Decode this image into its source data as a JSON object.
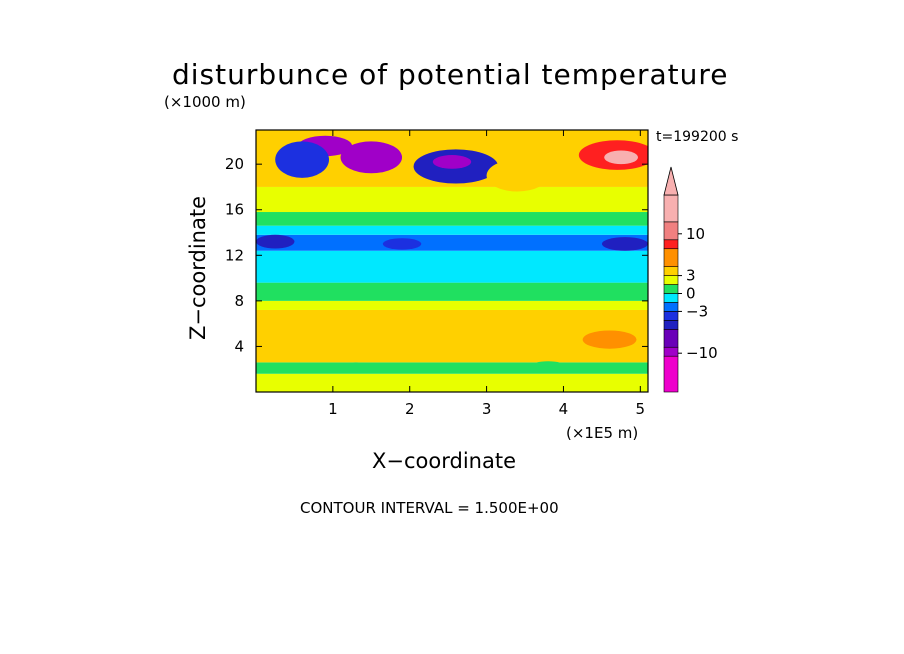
{
  "chart_data": {
    "type": "heatmap",
    "title": "disturbunce of potential temperature",
    "xlabel": "X−coordinate",
    "ylabel": "Z−coordinate",
    "x_units": "(×1E5 m)",
    "y_units": "(×1000 m)",
    "time_label": "t=199200 s",
    "footer": "CONTOUR INTERVAL = 1.500E+00",
    "xlim": [
      0,
      5.1
    ],
    "ylim": [
      0,
      23
    ],
    "x_ticks": [
      1,
      2,
      3,
      4,
      5
    ],
    "y_ticks": [
      4,
      8,
      12,
      16,
      20
    ],
    "colorbar": {
      "tick_labels": [
        "10",
        "3",
        "0",
        "−3",
        "−10"
      ],
      "tick_values": [
        10,
        3,
        0,
        -3,
        -10
      ],
      "levels": [
        {
          "lo": -16.5,
          "hi": -10.5,
          "color": "#ee00cc"
        },
        {
          "lo": -10.5,
          "hi": -9.0,
          "color": "#a000c8"
        },
        {
          "lo": -9.0,
          "hi": -6.0,
          "color": "#6a00b8"
        },
        {
          "lo": -6.0,
          "hi": -4.5,
          "color": "#2020c0"
        },
        {
          "lo": -4.5,
          "hi": -3.0,
          "color": "#1c30e0"
        },
        {
          "lo": -3.0,
          "hi": -1.5,
          "color": "#0070ff"
        },
        {
          "lo": -1.5,
          "hi": 0.0,
          "color": "#00e8ff"
        },
        {
          "lo": 0.0,
          "hi": 1.5,
          "color": "#20e060"
        },
        {
          "lo": 1.5,
          "hi": 3.0,
          "color": "#e8ff00"
        },
        {
          "lo": 3.0,
          "hi": 4.5,
          "color": "#ffd000"
        },
        {
          "lo": 4.5,
          "hi": 7.5,
          "color": "#ff9000"
        },
        {
          "lo": 7.5,
          "hi": 9.0,
          "color": "#ff2020"
        },
        {
          "lo": 9.0,
          "hi": 12.0,
          "color": "#f08080"
        },
        {
          "lo": 12.0,
          "hi": 16.5,
          "color": "#f8b0b0"
        }
      ],
      "extend_top": true
    },
    "bands": [
      {
        "z0": 0.0,
        "z1": 1.6,
        "value": 2.0
      },
      {
        "z0": 1.6,
        "z1": 2.6,
        "value": 1.0
      },
      {
        "z0": 2.6,
        "z1": 7.2,
        "value": 3.5
      },
      {
        "z0": 7.2,
        "z1": 8.0,
        "value": 2.0
      },
      {
        "z0": 8.0,
        "z1": 9.6,
        "value": 0.8
      },
      {
        "z0": 9.6,
        "z1": 12.4,
        "value": -0.8
      },
      {
        "z0": 12.4,
        "z1": 13.8,
        "value": -2.2
      },
      {
        "z0": 13.8,
        "z1": 14.6,
        "value": -0.8
      },
      {
        "z0": 14.6,
        "z1": 15.8,
        "value": 0.8
      },
      {
        "z0": 15.8,
        "z1": 18.0,
        "value": 2.2
      },
      {
        "z0": 18.0,
        "z1": 23.0,
        "value": 3.8
      }
    ],
    "blobs": [
      {
        "x": 0.9,
        "z": 21.6,
        "rx": 0.35,
        "rz": 0.9,
        "value": -9.5
      },
      {
        "x": 1.5,
        "z": 20.6,
        "rx": 0.4,
        "rz": 1.4,
        "value": -9.5
      },
      {
        "x": 0.6,
        "z": 20.4,
        "rx": 0.35,
        "rz": 1.6,
        "value": -3.5
      },
      {
        "x": 2.6,
        "z": 19.8,
        "rx": 0.55,
        "rz": 1.5,
        "value": -5.0
      },
      {
        "x": 2.55,
        "z": 20.2,
        "rx": 0.25,
        "rz": 0.6,
        "value": -9.5
      },
      {
        "x": 4.7,
        "z": 20.8,
        "rx": 0.5,
        "rz": 1.3,
        "value": 8.0
      },
      {
        "x": 4.75,
        "z": 20.6,
        "rx": 0.22,
        "rz": 0.6,
        "value": 13.0
      },
      {
        "x": 3.4,
        "z": 19.0,
        "rx": 0.4,
        "rz": 1.4,
        "value": 4.0
      },
      {
        "x": 0.25,
        "z": 13.2,
        "rx": 0.25,
        "rz": 0.6,
        "value": -5.0
      },
      {
        "x": 4.8,
        "z": 13.0,
        "rx": 0.3,
        "rz": 0.6,
        "value": -5.0
      },
      {
        "x": 1.9,
        "z": 13.0,
        "rx": 0.25,
        "rz": 0.5,
        "value": -3.5
      },
      {
        "x": 4.6,
        "z": 4.6,
        "rx": 0.35,
        "rz": 0.8,
        "value": 5.5
      },
      {
        "x": 1.3,
        "z": 2.2,
        "rx": 0.2,
        "rz": 0.4,
        "value": 0.8
      },
      {
        "x": 3.8,
        "z": 2.3,
        "rx": 0.22,
        "rz": 0.4,
        "value": 0.8
      }
    ]
  }
}
